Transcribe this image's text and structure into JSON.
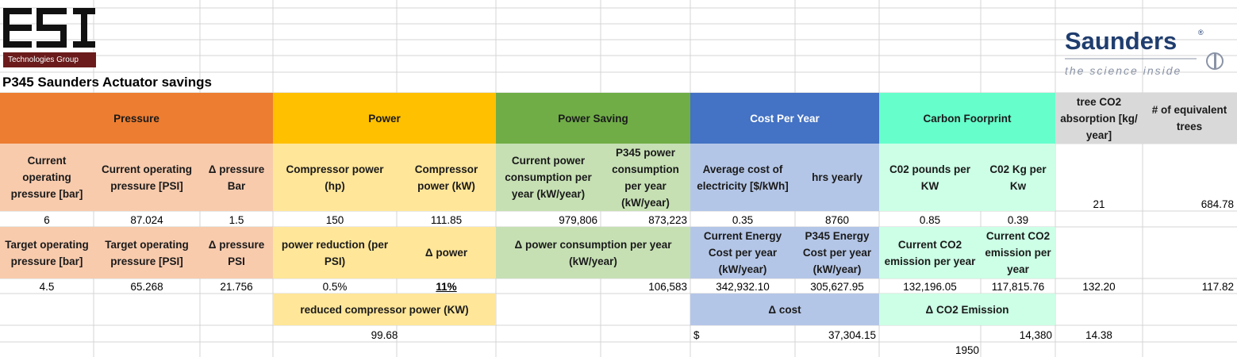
{
  "logos": {
    "esi": {
      "text": "ESI",
      "subtitle": "Technologies Group",
      "color": "#111111",
      "band_color": "#6b1b1b"
    },
    "saunders": {
      "name": "Saunders",
      "registered": "®",
      "tagline": "the science inside",
      "color": "#1f3d6e"
    }
  },
  "title": "P345 Saunders Actuator savings",
  "colors": {
    "pressure_header": "#ed7d31",
    "pressure_cell": "#f8cbad",
    "power_header": "#ffc000",
    "power_cell": "#ffe699",
    "saving_header": "#70ad47",
    "saving_cell": "#c6e0b4",
    "cost_header": "#4472c4",
    "cost_cell": "#b4c6e7",
    "carbon_header": "#66ffcc",
    "carbon_cell": "#ccffe6",
    "trees_header": "#d9d9d9"
  },
  "headers": {
    "pressure": "Pressure",
    "power": "Power",
    "power_saving": "Power Saving",
    "cost_per_year": "Cost Per Year",
    "carbon": "Carbon Foorprint",
    "tree_absorption": "tree CO2 absorption [kg/ year]",
    "equivalent_trees": "# of equivalent trees"
  },
  "labels": {
    "current_bar": "Current operating pressure [bar]",
    "current_psi": "Current operating pressure [PSI]",
    "delta_bar": "Δ pressure Bar",
    "compressor_hp": "Compressor power (hp)",
    "compressor_kw": "Compressor power (kW)",
    "current_consumption": "Current power consumption per year (kW/year)",
    "p345_consumption": "P345 power consumption per year (kW/year)",
    "avg_cost": "Average cost of electricity [$/kWh]",
    "hrs_yearly": "hrs yearly",
    "co2_pounds": "C02 pounds per KW",
    "co2_kg": "C02 Kg per Kw",
    "target_bar": "Target operating pressure [bar]",
    "target_psi": "Target operating pressure [PSI]",
    "delta_psi": "Δ pressure PSI",
    "power_reduction": "power reduction (per PSI)",
    "delta_power": "Δ power",
    "delta_consumption": "Δ power consumption per year (kW/year)",
    "current_energy_cost": "Current Energy Cost per year (kW/year)",
    "p345_energy_cost": "P345 Energy Cost per year (kW/year)",
    "current_co2": "Current CO2 emission per year",
    "current_co2_2": "Current CO2 emission per year",
    "reduced_power": "reduced compressor power (KW)",
    "delta_cost": "Δ cost",
    "delta_co2": "Δ CO2 Emission"
  },
  "values": {
    "current_bar": "6",
    "current_psi": "87.024",
    "delta_bar": "1.5",
    "compressor_hp": "150",
    "compressor_kw": "111.85",
    "current_consumption": "979,806",
    "p345_consumption": "873,223",
    "avg_cost": "0.35",
    "hrs_yearly": "8760",
    "co2_pounds": "0.85",
    "co2_kg": "0.39",
    "tree_absorption": "21",
    "equivalent_trees": "684.78",
    "target_bar": "4.5",
    "target_psi": "65.268",
    "delta_psi": "21.756",
    "power_reduction": "0.5%",
    "delta_power": "11%",
    "delta_consumption": "106,583",
    "current_energy_cost": "342,932.10",
    "p345_energy_cost": "305,627.95",
    "current_co2": "132,196.05",
    "current_co2_2": "117,815.76",
    "trees_2a": "132.20",
    "trees_2b": "117.82",
    "reduced_power": "99.68",
    "currency": "$",
    "delta_cost": "37,304.15",
    "delta_co2": "14,380",
    "delta_co2_t": "14.38",
    "misc": "1950"
  }
}
